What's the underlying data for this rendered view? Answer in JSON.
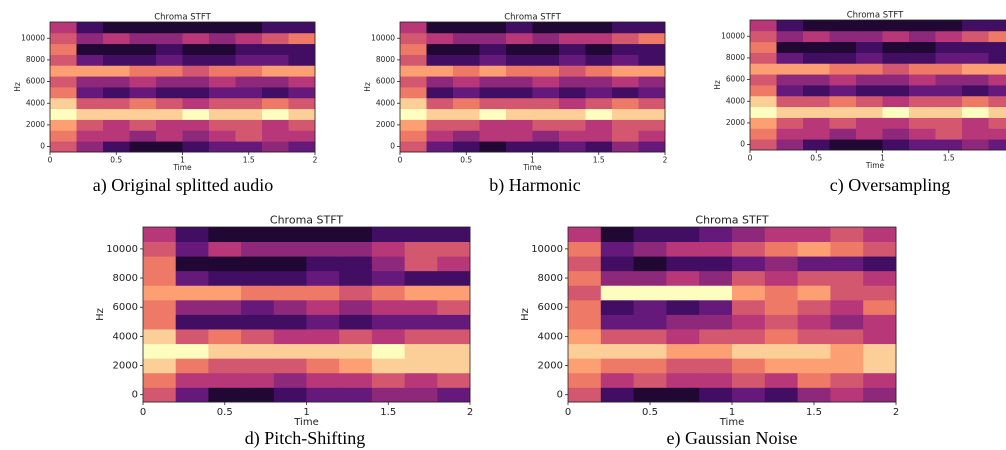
{
  "chart_data": [
    {
      "type": "heatmap",
      "title": "Chroma STFT",
      "xlabel": "Time",
      "ylabel": "Hz",
      "caption": "a) Original splitted audio",
      "colormap": "magma",
      "xlim": [
        0,
        2
      ],
      "xticks": [
        0,
        0.5,
        1,
        1.5,
        2
      ],
      "ylim": [
        -500,
        11500
      ],
      "yticks": [
        0,
        2000,
        4000,
        6000,
        8000,
        10000
      ],
      "x": [
        0.1,
        0.3,
        0.5,
        0.7,
        0.9,
        1.1,
        1.3,
        1.5,
        1.7,
        1.9
      ],
      "y": [
        0,
        1000,
        2000,
        3000,
        4000,
        5000,
        6000,
        7000,
        8000,
        9000,
        10000,
        11000
      ],
      "z": [
        [
          0.6,
          0.4,
          0.2,
          0.1,
          0.1,
          0.2,
          0.3,
          0.3,
          0.4,
          0.3
        ],
        [
          0.7,
          0.5,
          0.5,
          0.4,
          0.5,
          0.4,
          0.5,
          0.6,
          0.5,
          0.5
        ],
        [
          0.8,
          0.6,
          0.5,
          0.6,
          0.5,
          0.5,
          0.6,
          0.6,
          0.5,
          0.6
        ],
        [
          1,
          0.9,
          0.9,
          0.9,
          0.9,
          1,
          0.9,
          0.9,
          1,
          0.9
        ],
        [
          0.9,
          0.6,
          0.6,
          0.7,
          0.6,
          0.5,
          0.6,
          0.6,
          0.7,
          0.6
        ],
        [
          0.7,
          0.3,
          0.2,
          0.3,
          0.2,
          0.2,
          0.3,
          0.3,
          0.2,
          0.3
        ],
        [
          0.6,
          0.4,
          0.4,
          0.5,
          0.4,
          0.4,
          0.5,
          0.4,
          0.4,
          0.5
        ],
        [
          0.8,
          0.8,
          0.8,
          0.7,
          0.7,
          0.6,
          0.7,
          0.7,
          0.8,
          0.8
        ],
        [
          0.6,
          0.3,
          0.2,
          0.2,
          0.3,
          0.2,
          0.2,
          0.3,
          0.3,
          0.2
        ],
        [
          0.7,
          0.1,
          0.1,
          0.1,
          0.2,
          0.1,
          0.1,
          0.2,
          0.2,
          0.2
        ],
        [
          0.6,
          0.4,
          0.5,
          0.4,
          0.4,
          0.5,
          0.4,
          0.5,
          0.6,
          0.7
        ],
        [
          0.5,
          0.2,
          0.1,
          0.1,
          0.1,
          0.1,
          0.1,
          0.1,
          0.2,
          0.2
        ]
      ]
    },
    {
      "type": "heatmap",
      "title": "Chroma STFT",
      "xlabel": "Time",
      "ylabel": "Hz",
      "caption": "b) Harmonic",
      "colormap": "magma",
      "xlim": [
        0,
        2
      ],
      "xticks": [
        0,
        0.5,
        1,
        1.5,
        2
      ],
      "ylim": [
        -500,
        11500
      ],
      "yticks": [
        0,
        2000,
        4000,
        6000,
        8000,
        10000
      ],
      "x": [
        0.1,
        0.3,
        0.5,
        0.7,
        0.9,
        1.1,
        1.3,
        1.5,
        1.7,
        1.9
      ],
      "y": [
        0,
        1000,
        2000,
        3000,
        4000,
        5000,
        6000,
        7000,
        8000,
        9000,
        10000,
        11000
      ],
      "z": [
        [
          0.6,
          0.3,
          0.2,
          0.1,
          0.2,
          0.2,
          0.3,
          0.2,
          0.4,
          0.3
        ],
        [
          0.7,
          0.5,
          0.4,
          0.5,
          0.5,
          0.4,
          0.5,
          0.5,
          0.6,
          0.5
        ],
        [
          0.8,
          0.6,
          0.6,
          0.5,
          0.5,
          0.6,
          0.6,
          0.5,
          0.6,
          0.6
        ],
        [
          1,
          0.9,
          0.9,
          1,
          0.9,
          0.9,
          0.9,
          1,
          0.9,
          0.9
        ],
        [
          0.9,
          0.6,
          0.7,
          0.6,
          0.6,
          0.6,
          0.5,
          0.6,
          0.7,
          0.6
        ],
        [
          0.7,
          0.2,
          0.3,
          0.2,
          0.2,
          0.3,
          0.2,
          0.3,
          0.2,
          0.3
        ],
        [
          0.6,
          0.4,
          0.5,
          0.4,
          0.4,
          0.5,
          0.4,
          0.4,
          0.5,
          0.4
        ],
        [
          0.8,
          0.8,
          0.7,
          0.8,
          0.7,
          0.7,
          0.6,
          0.7,
          0.8,
          0.8
        ],
        [
          0.6,
          0.2,
          0.2,
          0.3,
          0.2,
          0.2,
          0.3,
          0.2,
          0.3,
          0.2
        ],
        [
          0.7,
          0.1,
          0.1,
          0.2,
          0.1,
          0.1,
          0.2,
          0.1,
          0.2,
          0.2
        ],
        [
          0.6,
          0.5,
          0.4,
          0.4,
          0.5,
          0.4,
          0.5,
          0.5,
          0.6,
          0.7
        ],
        [
          0.5,
          0.1,
          0.1,
          0.1,
          0.2,
          0.1,
          0.1,
          0.1,
          0.2,
          0.2
        ]
      ]
    },
    {
      "type": "heatmap",
      "title": "Chroma STFT",
      "xlabel": "Time",
      "ylabel": "Hz",
      "caption": "c) Oversampling",
      "colormap": "magma",
      "xlim": [
        0,
        2
      ],
      "xticks": [
        0,
        0.5,
        1,
        1.5
      ],
      "ylim": [
        -500,
        11500
      ],
      "yticks": [
        0,
        2000,
        4000,
        6000,
        8000,
        10000
      ],
      "x": [
        0.1,
        0.3,
        0.5,
        0.7,
        0.9,
        1.1,
        1.3,
        1.5,
        1.7,
        1.9
      ],
      "y": [
        0,
        1000,
        2000,
        3000,
        4000,
        5000,
        6000,
        7000,
        8000,
        9000,
        10000,
        11000
      ],
      "z": [
        [
          0.6,
          0.4,
          0.2,
          0.1,
          0.1,
          0.2,
          0.3,
          0.3,
          0.4,
          0.3
        ],
        [
          0.7,
          0.5,
          0.5,
          0.4,
          0.5,
          0.4,
          0.5,
          0.6,
          0.5,
          0.5
        ],
        [
          0.8,
          0.6,
          0.5,
          0.6,
          0.5,
          0.5,
          0.6,
          0.6,
          0.5,
          0.6
        ],
        [
          1,
          0.9,
          0.9,
          0.9,
          0.9,
          1,
          0.9,
          0.9,
          1,
          0.9
        ],
        [
          0.9,
          0.6,
          0.6,
          0.7,
          0.6,
          0.5,
          0.6,
          0.6,
          0.7,
          0.6
        ],
        [
          0.7,
          0.3,
          0.2,
          0.3,
          0.2,
          0.2,
          0.3,
          0.3,
          0.2,
          0.3
        ],
        [
          0.6,
          0.4,
          0.4,
          0.5,
          0.4,
          0.4,
          0.5,
          0.4,
          0.4,
          0.5
        ],
        [
          0.8,
          0.8,
          0.8,
          0.7,
          0.7,
          0.6,
          0.7,
          0.7,
          0.8,
          0.8
        ],
        [
          0.6,
          0.3,
          0.2,
          0.2,
          0.3,
          0.2,
          0.2,
          0.3,
          0.3,
          0.2
        ],
        [
          0.7,
          0.1,
          0.1,
          0.1,
          0.2,
          0.1,
          0.1,
          0.2,
          0.2,
          0.2
        ],
        [
          0.6,
          0.4,
          0.5,
          0.4,
          0.4,
          0.5,
          0.4,
          0.5,
          0.6,
          0.7
        ],
        [
          0.5,
          0.2,
          0.1,
          0.1,
          0.1,
          0.1,
          0.1,
          0.1,
          0.2,
          0.2
        ]
      ]
    },
    {
      "type": "heatmap",
      "title": "Chroma STFT",
      "xlabel": "Time",
      "ylabel": "Hz",
      "caption": "d) Pitch-Shifting",
      "colormap": "magma",
      "xlim": [
        0,
        2
      ],
      "xticks": [
        0,
        0.5,
        1,
        1.5,
        2
      ],
      "ylim": [
        -500,
        11500
      ],
      "yticks": [
        0,
        2000,
        4000,
        6000,
        8000,
        10000
      ],
      "x": [
        0.1,
        0.3,
        0.5,
        0.7,
        0.9,
        1.1,
        1.3,
        1.5,
        1.7,
        1.9
      ],
      "y": [
        0,
        1000,
        2000,
        3000,
        4000,
        5000,
        6000,
        7000,
        8000,
        9000,
        10000,
        11000
      ],
      "z": [
        [
          0.6,
          0.3,
          0.1,
          0.1,
          0.2,
          0.3,
          0.3,
          0.4,
          0.4,
          0.3
        ],
        [
          0.7,
          0.5,
          0.5,
          0.5,
          0.4,
          0.5,
          0.5,
          0.6,
          0.5,
          0.6
        ],
        [
          0.9,
          0.7,
          0.6,
          0.6,
          0.6,
          0.7,
          0.8,
          0.9,
          0.9,
          0.9
        ],
        [
          1,
          1,
          0.9,
          0.9,
          0.9,
          0.9,
          0.9,
          1,
          0.9,
          0.9
        ],
        [
          0.9,
          0.6,
          0.7,
          0.6,
          0.5,
          0.5,
          0.6,
          0.5,
          0.6,
          0.6
        ],
        [
          0.7,
          0.2,
          0.2,
          0.2,
          0.2,
          0.3,
          0.2,
          0.3,
          0.3,
          0.3
        ],
        [
          0.7,
          0.4,
          0.4,
          0.3,
          0.4,
          0.5,
          0.4,
          0.5,
          0.5,
          0.6
        ],
        [
          0.8,
          0.8,
          0.8,
          0.7,
          0.7,
          0.7,
          0.6,
          0.7,
          0.8,
          0.8
        ],
        [
          0.7,
          0.3,
          0.2,
          0.2,
          0.2,
          0.3,
          0.2,
          0.3,
          0.2,
          0.2
        ],
        [
          0.7,
          0.1,
          0.1,
          0.1,
          0.1,
          0.2,
          0.2,
          0.4,
          0.6,
          0.5
        ],
        [
          0.6,
          0.3,
          0.5,
          0.4,
          0.4,
          0.4,
          0.4,
          0.5,
          0.6,
          0.6
        ],
        [
          0.5,
          0.2,
          0.1,
          0.1,
          0.1,
          0.1,
          0.1,
          0.2,
          0.2,
          0.2
        ]
      ]
    },
    {
      "type": "heatmap",
      "title": "Chroma STFT",
      "xlabel": "Time",
      "ylabel": "Hz",
      "caption": "e) Gaussian Noise",
      "colormap": "magma",
      "xlim": [
        0,
        2
      ],
      "xticks": [
        0,
        0.5,
        1,
        1.5,
        2
      ],
      "ylim": [
        -500,
        11500
      ],
      "yticks": [
        0,
        2000,
        4000,
        6000,
        8000,
        10000
      ],
      "x": [
        0.1,
        0.3,
        0.5,
        0.7,
        0.9,
        1.1,
        1.3,
        1.5,
        1.7,
        1.9
      ],
      "y": [
        0,
        1000,
        2000,
        3000,
        4000,
        5000,
        6000,
        7000,
        8000,
        9000,
        10000,
        11000
      ],
      "z": [
        [
          0.6,
          0.2,
          0.1,
          0.1,
          0.2,
          0.3,
          0.2,
          0.4,
          0.5,
          0.4
        ],
        [
          0.7,
          0.5,
          0.6,
          0.5,
          0.5,
          0.6,
          0.5,
          0.7,
          0.6,
          0.5
        ],
        [
          0.8,
          0.7,
          0.7,
          0.6,
          0.6,
          0.7,
          0.8,
          0.8,
          0.8,
          0.9
        ],
        [
          0.9,
          0.9,
          0.9,
          0.8,
          0.8,
          0.9,
          0.9,
          0.9,
          0.8,
          0.9
        ],
        [
          0.8,
          0.6,
          0.6,
          0.5,
          0.6,
          0.6,
          0.7,
          0.6,
          0.6,
          0.5
        ],
        [
          0.7,
          0.3,
          0.3,
          0.4,
          0.4,
          0.5,
          0.6,
          0.5,
          0.4,
          0.5
        ],
        [
          0.7,
          0.2,
          0.3,
          0.2,
          0.3,
          0.6,
          0.7,
          0.6,
          0.5,
          0.7
        ],
        [
          0.6,
          1,
          1,
          1,
          1,
          0.8,
          0.7,
          0.8,
          0.6,
          0.6
        ],
        [
          0.7,
          0.4,
          0.4,
          0.5,
          0.4,
          0.6,
          0.5,
          0.6,
          0.6,
          0.5
        ],
        [
          0.6,
          0.2,
          0.1,
          0.2,
          0.2,
          0.3,
          0.4,
          0.3,
          0.3,
          0.2
        ],
        [
          0.7,
          0.3,
          0.4,
          0.5,
          0.5,
          0.6,
          0.7,
          0.8,
          0.7,
          0.6
        ],
        [
          0.5,
          0.1,
          0.2,
          0.2,
          0.3,
          0.4,
          0.5,
          0.5,
          0.6,
          0.5
        ]
      ]
    }
  ]
}
